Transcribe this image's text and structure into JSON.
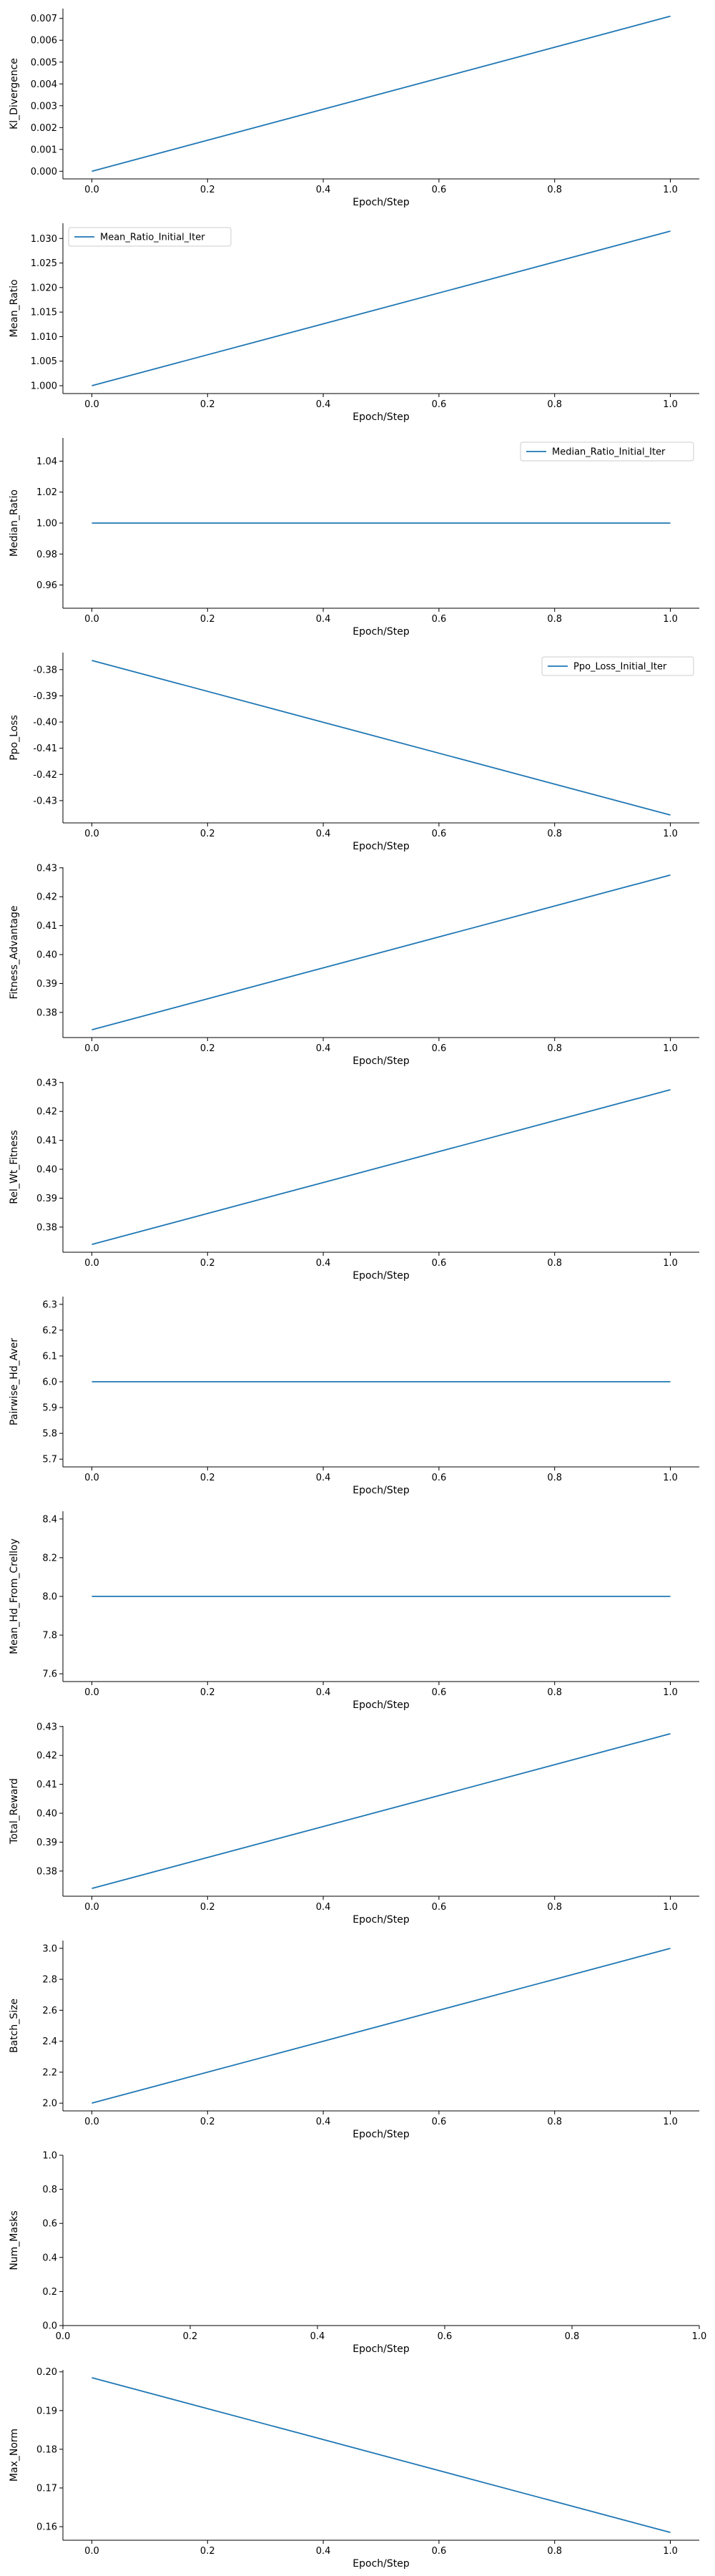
{
  "chart_data": [
    {
      "type": "line",
      "xlabel": "Epoch/Step",
      "ylabel": "Kl_Divergence",
      "x": [
        0,
        1
      ],
      "series": [
        {
          "values": [
            0.0,
            0.0071
          ]
        }
      ],
      "xlim": [
        -0.05,
        1.05
      ],
      "ylim": [
        -0.00035,
        0.00745
      ],
      "xticks": [
        "0.0",
        "0.2",
        "0.4",
        "0.6",
        "0.8",
        "1.0"
      ],
      "yticks": [
        "0.000",
        "0.001",
        "0.002",
        "0.003",
        "0.004",
        "0.005",
        "0.006",
        "0.007"
      ],
      "ytick_values": [
        0,
        0.001,
        0.002,
        0.003,
        0.004,
        0.005,
        0.006,
        0.007
      ],
      "legend": null,
      "grid": false
    },
    {
      "type": "line",
      "xlabel": "Epoch/Step",
      "ylabel": "Mean_Ratio",
      "x": [
        0,
        1
      ],
      "series": [
        {
          "name": "Mean_Ratio_Initial_Iter",
          "values": [
            1.0,
            1.0315
          ]
        }
      ],
      "xlim": [
        -0.05,
        1.05
      ],
      "ylim": [
        0.9984,
        1.0331
      ],
      "xticks": [
        "0.0",
        "0.2",
        "0.4",
        "0.6",
        "0.8",
        "1.0"
      ],
      "yticks": [
        "1.000",
        "1.005",
        "1.010",
        "1.015",
        "1.020",
        "1.025",
        "1.030"
      ],
      "ytick_values": [
        1.0,
        1.005,
        1.01,
        1.015,
        1.02,
        1.025,
        1.03
      ],
      "legend": "upper-left",
      "grid": false
    },
    {
      "type": "line",
      "xlabel": "Epoch/Step",
      "ylabel": "Median_Ratio",
      "x": [
        0,
        1
      ],
      "series": [
        {
          "name": "Median_Ratio_Initial_Iter",
          "values": [
            1.0,
            1.0
          ]
        }
      ],
      "xlim": [
        -0.05,
        1.05
      ],
      "ylim": [
        0.945,
        1.055
      ],
      "xticks": [
        "0.0",
        "0.2",
        "0.4",
        "0.6",
        "0.8",
        "1.0"
      ],
      "yticks": [
        "0.96",
        "0.98",
        "1.00",
        "1.02",
        "1.04"
      ],
      "ytick_values": [
        0.96,
        0.98,
        1.0,
        1.02,
        1.04
      ],
      "legend": "upper-right",
      "grid": false
    },
    {
      "type": "line",
      "xlabel": "Epoch/Step",
      "ylabel": "Ppo_Loss",
      "x": [
        0,
        1
      ],
      "series": [
        {
          "name": "Ppo_Loss_Initial_Iter",
          "values": [
            -0.3765,
            -0.4355
          ]
        }
      ],
      "xlim": [
        -0.05,
        1.05
      ],
      "ylim": [
        -0.4385,
        -0.3735
      ],
      "xticks": [
        "0.0",
        "0.2",
        "0.4",
        "0.6",
        "0.8",
        "1.0"
      ],
      "yticks": [
        "-0.38",
        "-0.39",
        "-0.40",
        "-0.41",
        "-0.42",
        "-0.43"
      ],
      "ytick_values": [
        -0.38,
        -0.39,
        -0.4,
        -0.41,
        -0.42,
        -0.43
      ],
      "legend": "upper-right",
      "grid": false
    },
    {
      "type": "line",
      "xlabel": "Epoch/Step",
      "ylabel": "Fitness_Advantage",
      "x": [
        0,
        1
      ],
      "series": [
        {
          "values": [
            0.374,
            0.4275
          ]
        }
      ],
      "xlim": [
        -0.05,
        1.05
      ],
      "ylim": [
        0.3713,
        0.4302
      ],
      "xticks": [
        "0.0",
        "0.2",
        "0.4",
        "0.6",
        "0.8",
        "1.0"
      ],
      "yticks": [
        "0.38",
        "0.39",
        "0.40",
        "0.41",
        "0.42",
        "0.43"
      ],
      "ytick_values": [
        0.38,
        0.39,
        0.4,
        0.41,
        0.42,
        0.43
      ],
      "legend": null,
      "grid": false
    },
    {
      "type": "line",
      "xlabel": "Epoch/Step",
      "ylabel": "Rel_Wt_Fitness",
      "x": [
        0,
        1
      ],
      "series": [
        {
          "values": [
            0.374,
            0.4275
          ]
        }
      ],
      "xlim": [
        -0.05,
        1.05
      ],
      "ylim": [
        0.3713,
        0.4302
      ],
      "xticks": [
        "0.0",
        "0.2",
        "0.4",
        "0.6",
        "0.8",
        "1.0"
      ],
      "yticks": [
        "0.38",
        "0.39",
        "0.40",
        "0.41",
        "0.42",
        "0.43"
      ],
      "ytick_values": [
        0.38,
        0.39,
        0.4,
        0.41,
        0.42,
        0.43
      ],
      "legend": null,
      "grid": false
    },
    {
      "type": "line",
      "xlabel": "Epoch/Step",
      "ylabel": "Pairwise_Hd_Aver",
      "x": [
        0,
        1
      ],
      "series": [
        {
          "values": [
            6.0,
            6.0
          ]
        }
      ],
      "xlim": [
        -0.05,
        1.05
      ],
      "ylim": [
        5.67,
        6.33
      ],
      "xticks": [
        "0.0",
        "0.2",
        "0.4",
        "0.6",
        "0.8",
        "1.0"
      ],
      "yticks": [
        "5.7",
        "5.8",
        "5.9",
        "6.0",
        "6.1",
        "6.2",
        "6.3"
      ],
      "ytick_values": [
        5.7,
        5.8,
        5.9,
        6.0,
        6.1,
        6.2,
        6.3
      ],
      "legend": null,
      "grid": false
    },
    {
      "type": "line",
      "xlabel": "Epoch/Step",
      "ylabel": "Mean_Hd_From_Crelloy",
      "x": [
        0,
        1
      ],
      "series": [
        {
          "values": [
            8.0,
            8.0
          ]
        }
      ],
      "xlim": [
        -0.05,
        1.05
      ],
      "ylim": [
        7.56,
        8.44
      ],
      "xticks": [
        "0.0",
        "0.2",
        "0.4",
        "0.6",
        "0.8",
        "1.0"
      ],
      "yticks": [
        "7.6",
        "7.8",
        "8.0",
        "8.2",
        "8.4"
      ],
      "ytick_values": [
        7.6,
        7.8,
        8.0,
        8.2,
        8.4
      ],
      "legend": null,
      "grid": false
    },
    {
      "type": "line",
      "xlabel": "Epoch/Step",
      "ylabel": "Total_Reward",
      "x": [
        0,
        1
      ],
      "series": [
        {
          "values": [
            0.374,
            0.4275
          ]
        }
      ],
      "xlim": [
        -0.05,
        1.05
      ],
      "ylim": [
        0.3713,
        0.4302
      ],
      "xticks": [
        "0.0",
        "0.2",
        "0.4",
        "0.6",
        "0.8",
        "1.0"
      ],
      "yticks": [
        "0.38",
        "0.39",
        "0.40",
        "0.41",
        "0.42",
        "0.43"
      ],
      "ytick_values": [
        0.38,
        0.39,
        0.4,
        0.41,
        0.42,
        0.43
      ],
      "legend": null,
      "grid": false
    },
    {
      "type": "line",
      "xlabel": "Epoch/Step",
      "ylabel": "Batch_Size",
      "x": [
        0,
        1
      ],
      "series": [
        {
          "values": [
            2.0,
            3.0
          ]
        }
      ],
      "xlim": [
        -0.05,
        1.05
      ],
      "ylim": [
        1.95,
        3.05
      ],
      "xticks": [
        "0.0",
        "0.2",
        "0.4",
        "0.6",
        "0.8",
        "1.0"
      ],
      "yticks": [
        "2.0",
        "2.2",
        "2.4",
        "2.6",
        "2.8",
        "3.0"
      ],
      "ytick_values": [
        2.0,
        2.2,
        2.4,
        2.6,
        2.8,
        3.0
      ],
      "legend": null,
      "grid": false
    },
    {
      "type": "line",
      "xlabel": "Epoch/Step",
      "ylabel": "Num_Masks",
      "x": [],
      "series": [],
      "xlim": [
        0,
        1
      ],
      "ylim": [
        0,
        1
      ],
      "xticks": [
        "0.0",
        "0.2",
        "0.4",
        "0.6",
        "0.8",
        "1.0"
      ],
      "xtick_values": [
        0,
        0.2,
        0.4,
        0.6,
        0.8,
        1.0
      ],
      "yticks": [
        "0.0",
        "0.2",
        "0.4",
        "0.6",
        "0.8",
        "1.0"
      ],
      "ytick_values": [
        0,
        0.2,
        0.4,
        0.6,
        0.8,
        1.0
      ],
      "legend": null,
      "grid": false
    },
    {
      "type": "line",
      "xlabel": "Epoch/Step",
      "ylabel": "Max_Norm",
      "x": [
        0,
        1
      ],
      "series": [
        {
          "values": [
            0.1985,
            0.1585
          ]
        }
      ],
      "xlim": [
        -0.05,
        1.05
      ],
      "ylim": [
        0.1565,
        0.2005
      ],
      "xticks": [
        "0.0",
        "0.2",
        "0.4",
        "0.6",
        "0.8",
        "1.0"
      ],
      "yticks": [
        "0.16",
        "0.17",
        "0.18",
        "0.19",
        "0.20"
      ],
      "ytick_values": [
        0.16,
        0.17,
        0.18,
        0.19,
        0.2
      ],
      "legend": null,
      "grid": false
    }
  ],
  "colors": {
    "line": "#1f77b4",
    "axis": "#000000",
    "legend_border": "#cccccc"
  }
}
